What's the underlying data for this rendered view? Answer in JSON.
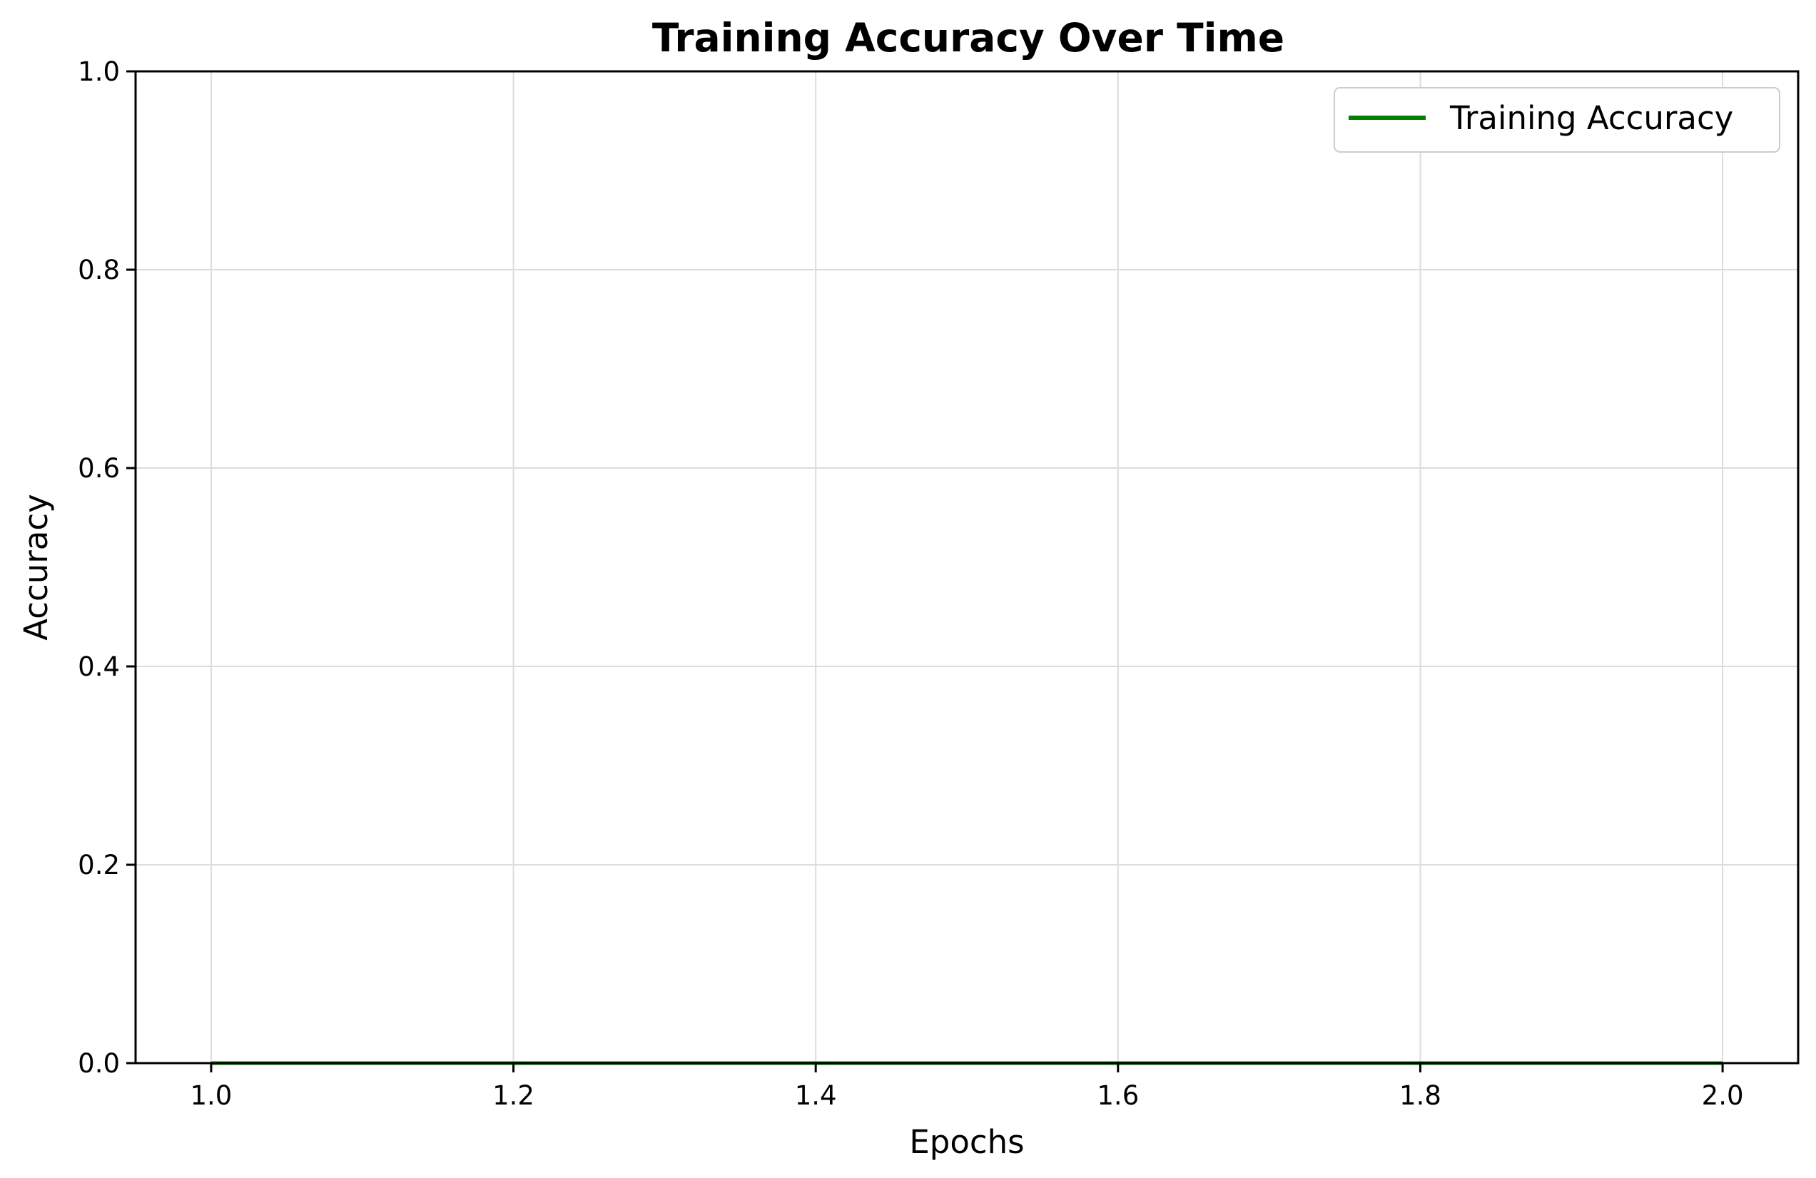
{
  "chart_data": {
    "type": "line",
    "title": "Training Accuracy Over Time",
    "xlabel": "Epochs",
    "ylabel": "Accuracy",
    "xlim": [
      0.95,
      2.05
    ],
    "ylim": [
      0.0,
      1.0
    ],
    "x_ticks": [
      "1.0",
      "1.2",
      "1.4",
      "1.6",
      "1.8",
      "2.0"
    ],
    "y_ticks": [
      "0.0",
      "0.2",
      "0.4",
      "0.6",
      "0.8",
      "1.0"
    ],
    "grid": true,
    "legend_position": "top-right",
    "series": [
      {
        "name": "Training Accuracy",
        "color": "#008000",
        "x": [
          1.0,
          2.0
        ],
        "values": [
          0.0,
          0.0
        ]
      }
    ]
  }
}
